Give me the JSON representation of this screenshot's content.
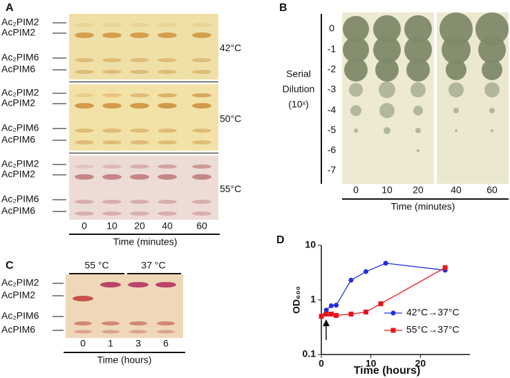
{
  "panel_labels": [
    "A",
    "B",
    "C",
    "D"
  ],
  "panel_a": {
    "bands": [
      "Ac₂PIM2",
      "AcPIM2",
      "Ac₂PIM6",
      "AcPIM6"
    ],
    "temperatures": [
      "42°C",
      "50°C",
      "55°C"
    ],
    "lanes": [
      "0",
      "10",
      "20",
      "40",
      "60"
    ],
    "axis_label": "Time (minutes)"
  },
  "panel_b": {
    "y_label": [
      "Serial",
      "Dilution",
      "(10ˣ)"
    ],
    "dilutions": [
      "0",
      "-1",
      "-2",
      "-3",
      "-4",
      "-5",
      "-6",
      "-7"
    ],
    "lanes": [
      "0",
      "10",
      "20",
      "40",
      "60"
    ],
    "axis_label": "Time (minutes)"
  },
  "panel_c": {
    "headers": [
      "55 °C",
      "37 °C"
    ],
    "bands": [
      "Ac₂PIM2",
      "AcPIM2",
      "Ac₂PIM6",
      "AcPIM6"
    ],
    "lanes": [
      "0",
      "1",
      "3",
      "6"
    ],
    "axis_label": "Time (hours)"
  },
  "chart_data": {
    "type": "line",
    "x_label": "Time (hours)",
    "y_label": "OD₆₀₀",
    "log_y": true,
    "xlim": [
      0,
      30
    ],
    "ylim": [
      0.1,
      10
    ],
    "xticks": [
      0,
      10,
      20
    ],
    "yticks": [
      0.1,
      1,
      10
    ],
    "series": [
      {
        "name": "42°C→37°C",
        "color": "#1f2fe0",
        "marker": "circle",
        "x": [
          0,
          1,
          2,
          3,
          6,
          9,
          13,
          25
        ],
        "values": [
          0.5,
          0.65,
          0.78,
          0.8,
          2.3,
          3.3,
          4.7,
          3.5
        ]
      },
      {
        "name": "55°C→37°C",
        "color": "#e8141c",
        "marker": "square",
        "x": [
          0,
          1,
          2,
          3,
          6,
          9,
          12,
          25
        ],
        "values": [
          0.5,
          0.55,
          0.55,
          0.52,
          0.55,
          0.6,
          0.85,
          3.9
        ]
      }
    ]
  }
}
